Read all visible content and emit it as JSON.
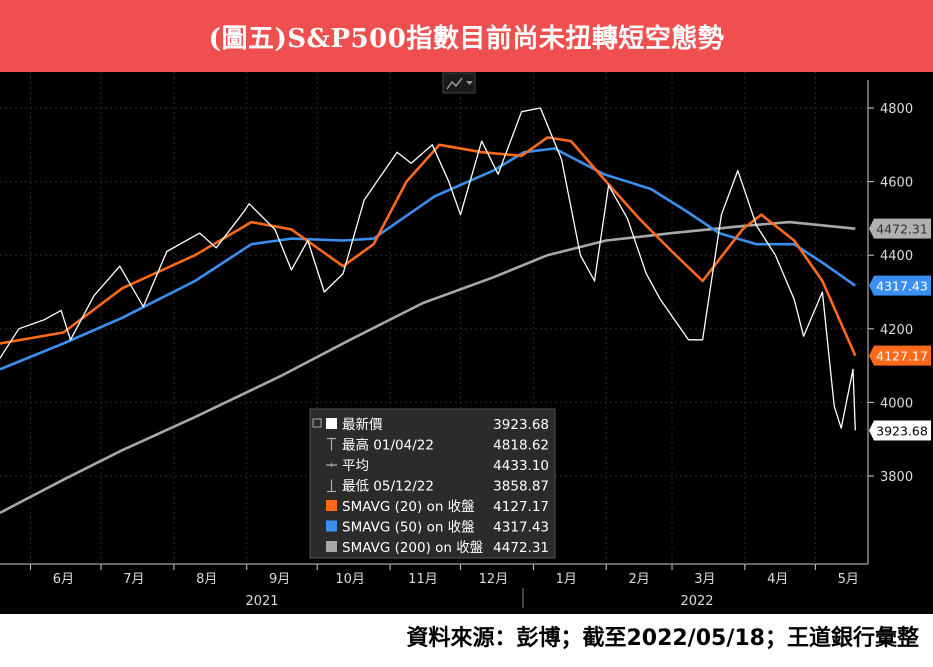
{
  "header": {
    "title": "(圖五)S&P500指數目前尚未扭轉短空態勢"
  },
  "footer": {
    "source": "資料來源：彭博；截至2022/05/18；王道銀行彙整"
  },
  "colors": {
    "banner": "#f04f4f",
    "price": "#ffffff",
    "sma20": "#ff6a1a",
    "sma50": "#3a8ff0",
    "sma200": "#a8a8a8",
    "background": "#000000"
  },
  "toolbar": {
    "icon": "chart-type-icon"
  },
  "legend": {
    "rows": [
      {
        "label": "最新價",
        "value": "3923.68",
        "marker": "square-white"
      },
      {
        "label": "最高 01/04/22",
        "value": "4818.62",
        "marker": "high"
      },
      {
        "label": "平均",
        "value": "4433.10",
        "marker": "avg"
      },
      {
        "label": "最低 05/12/22",
        "value": "3858.87",
        "marker": "low"
      },
      {
        "label": "SMAVG (20)  on 收盤",
        "value": "4127.17",
        "marker": "square-orange"
      },
      {
        "label": "SMAVG (50)  on 收盤",
        "value": "4317.43",
        "marker": "square-blue"
      },
      {
        "label": "SMAVG (200) on 收盤",
        "value": "4472.31",
        "marker": "square-gray"
      }
    ]
  },
  "chart_data": {
    "type": "line",
    "title": "(圖五)S&P500指數目前尚未扭轉短空態勢",
    "x_axis": {
      "months": [
        "6月",
        "7月",
        "8月",
        "9月",
        "10月",
        "11月",
        "12月",
        "1月",
        "2月",
        "3月",
        "4月",
        "5月"
      ],
      "years": [
        "2021",
        "2022"
      ]
    },
    "y_axis": {
      "ticks": [
        3800,
        4000,
        4200,
        4400,
        4600,
        4800
      ],
      "ylim": [
        3700,
        4860
      ]
    },
    "last_value_labels": [
      {
        "series": "SMAVG (200)",
        "value": "4472.31"
      },
      {
        "series": "SMAVG (50)",
        "value": "4317.43"
      },
      {
        "series": "SMAVG (20)",
        "value": "4127.17"
      },
      {
        "series": "最新價",
        "value": "3923.68"
      }
    ],
    "series": [
      {
        "name": "最新價",
        "key": "price",
        "points": [
          [
            "2021-05-19",
            4120
          ],
          [
            "2021-05-27",
            4200
          ],
          [
            "2021-06-07",
            4225
          ],
          [
            "2021-06-14",
            4250
          ],
          [
            "2021-06-18",
            4170
          ],
          [
            "2021-06-28",
            4290
          ],
          [
            "2021-07-09",
            4370
          ],
          [
            "2021-07-19",
            4260
          ],
          [
            "2021-07-29",
            4410
          ],
          [
            "2021-08-12",
            4460
          ],
          [
            "2021-08-19",
            4420
          ],
          [
            "2021-08-31",
            4520
          ],
          [
            "2021-09-02",
            4540
          ],
          [
            "2021-09-13",
            4470
          ],
          [
            "2021-09-20",
            4360
          ],
          [
            "2021-09-27",
            4440
          ],
          [
            "2021-10-04",
            4300
          ],
          [
            "2021-10-12",
            4350
          ],
          [
            "2021-10-21",
            4550
          ],
          [
            "2021-11-04",
            4680
          ],
          [
            "2021-11-10",
            4650
          ],
          [
            "2021-11-19",
            4700
          ],
          [
            "2021-11-26",
            4600
          ],
          [
            "2021-12-01",
            4510
          ],
          [
            "2021-12-10",
            4710
          ],
          [
            "2021-12-17",
            4620
          ],
          [
            "2021-12-27",
            4790
          ],
          [
            "2022-01-04",
            4800
          ],
          [
            "2022-01-13",
            4660
          ],
          [
            "2022-01-21",
            4400
          ],
          [
            "2022-01-27",
            4330
          ],
          [
            "2022-02-02",
            4590
          ],
          [
            "2022-02-10",
            4500
          ],
          [
            "2022-02-18",
            4350
          ],
          [
            "2022-02-24",
            4280
          ],
          [
            "2022-03-08",
            4170
          ],
          [
            "2022-03-14",
            4170
          ],
          [
            "2022-03-22",
            4510
          ],
          [
            "2022-03-29",
            4630
          ],
          [
            "2022-04-06",
            4480
          ],
          [
            "2022-04-14",
            4400
          ],
          [
            "2022-04-22",
            4280
          ],
          [
            "2022-04-26",
            4180
          ],
          [
            "2022-05-04",
            4300
          ],
          [
            "2022-05-09",
            3990
          ],
          [
            "2022-05-12",
            3930
          ],
          [
            "2022-05-17",
            4090
          ],
          [
            "2022-05-18",
            3924
          ]
        ]
      },
      {
        "name": "SMAVG (20)",
        "key": "sma20",
        "points": [
          [
            "2021-05-19",
            4160
          ],
          [
            "2021-06-15",
            4190
          ],
          [
            "2021-07-10",
            4310
          ],
          [
            "2021-08-10",
            4400
          ],
          [
            "2021-09-03",
            4490
          ],
          [
            "2021-09-20",
            4470
          ],
          [
            "2021-10-12",
            4370
          ],
          [
            "2021-10-25",
            4430
          ],
          [
            "2021-11-08",
            4600
          ],
          [
            "2021-11-22",
            4700
          ],
          [
            "2021-12-10",
            4680
          ],
          [
            "2021-12-27",
            4670
          ],
          [
            "2022-01-07",
            4720
          ],
          [
            "2022-01-17",
            4710
          ],
          [
            "2022-02-01",
            4600
          ],
          [
            "2022-02-15",
            4500
          ],
          [
            "2022-03-01",
            4410
          ],
          [
            "2022-03-14",
            4330
          ],
          [
            "2022-03-31",
            4470
          ],
          [
            "2022-04-08",
            4510
          ],
          [
            "2022-04-22",
            4440
          ],
          [
            "2022-05-04",
            4330
          ],
          [
            "2022-05-18",
            4127
          ]
        ]
      },
      {
        "name": "SMAVG (50)",
        "key": "sma50",
        "points": [
          [
            "2021-05-19",
            4090
          ],
          [
            "2021-06-15",
            4160
          ],
          [
            "2021-07-10",
            4230
          ],
          [
            "2021-08-10",
            4330
          ],
          [
            "2021-09-03",
            4430
          ],
          [
            "2021-09-20",
            4445
          ],
          [
            "2021-10-12",
            4440
          ],
          [
            "2021-10-25",
            4445
          ],
          [
            "2021-11-20",
            4560
          ],
          [
            "2021-12-15",
            4630
          ],
          [
            "2021-12-28",
            4680
          ],
          [
            "2022-01-10",
            4690
          ],
          [
            "2022-01-31",
            4620
          ],
          [
            "2022-02-20",
            4580
          ],
          [
            "2022-03-07",
            4520
          ],
          [
            "2022-03-21",
            4460
          ],
          [
            "2022-04-06",
            4430
          ],
          [
            "2022-04-22",
            4430
          ],
          [
            "2022-05-04",
            4380
          ],
          [
            "2022-05-18",
            4317
          ]
        ]
      },
      {
        "name": "SMAVG (200)",
        "key": "sma200",
        "points": [
          [
            "2021-05-19",
            3700
          ],
          [
            "2021-06-15",
            3790
          ],
          [
            "2021-07-10",
            3870
          ],
          [
            "2021-08-10",
            3960
          ],
          [
            "2021-09-15",
            4070
          ],
          [
            "2021-10-15",
            4170
          ],
          [
            "2021-11-15",
            4270
          ],
          [
            "2021-12-15",
            4340
          ],
          [
            "2022-01-07",
            4400
          ],
          [
            "2022-02-01",
            4440
          ],
          [
            "2022-03-01",
            4460
          ],
          [
            "2022-04-01",
            4480
          ],
          [
            "2022-04-20",
            4490
          ],
          [
            "2022-05-18",
            4472
          ]
        ]
      }
    ]
  }
}
